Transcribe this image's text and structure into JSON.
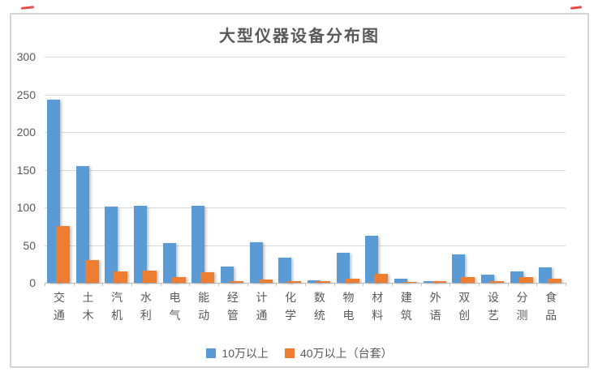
{
  "chart_data": {
    "type": "bar",
    "title": "大型仪器设备分布图",
    "categories": [
      "交通",
      "土木",
      "汽机",
      "水利",
      "电气",
      "能动",
      "经管",
      "计通",
      "化学",
      "数统",
      "物电",
      "材料",
      "建筑",
      "外语",
      "双创",
      "设艺",
      "分测",
      "食品"
    ],
    "series": [
      {
        "name": "10万以上",
        "values": [
          243,
          155,
          101,
          102,
          53,
          102,
          21,
          54,
          33,
          3,
          40,
          62,
          5,
          2,
          38,
          11,
          15,
          20
        ]
      },
      {
        "name": "40万以上（台套）",
        "values": [
          75,
          30,
          15,
          16,
          7,
          14,
          2,
          4,
          2,
          2,
          5,
          12,
          1,
          2,
          8,
          2,
          8,
          5
        ]
      }
    ],
    "xlabel": "",
    "ylabel": "",
    "ylim": [
      0,
      300
    ],
    "yticks": [
      0,
      50,
      100,
      150,
      200,
      250,
      300
    ],
    "grid": true,
    "legend_position": "bottom"
  },
  "legend": {
    "items": [
      {
        "label": "10万以上",
        "color": "#5B9BD5"
      },
      {
        "label": "40万以上（台套）",
        "color": "#ED7D31"
      }
    ]
  },
  "colors": {
    "series1": "#5B9BD5",
    "series2": "#ED7D31",
    "gridline": "#D9D9D9",
    "axis_text": "#595959",
    "title_text": "#595959",
    "frame_border": "#D6D6D6",
    "annotation_red": "#E02B20",
    "background": "#FFFFFF"
  },
  "annotations": {
    "marks": [
      {
        "name": "red-dash-top-left"
      },
      {
        "name": "red-dash-top-right"
      }
    ]
  }
}
